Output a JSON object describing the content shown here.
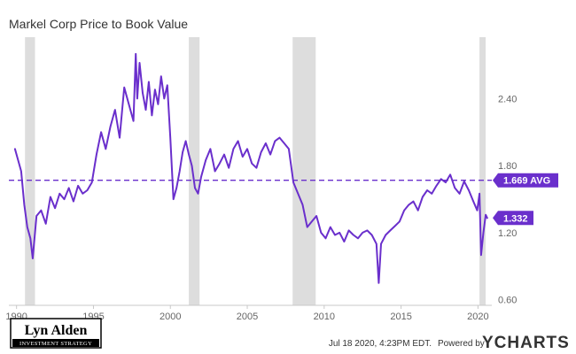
{
  "chart_data": {
    "type": "line",
    "title": "Markel Corp Price to Book Value",
    "xlabel": "",
    "ylabel": "",
    "xlim": [
      1989.5,
      2020.9
    ],
    "ylim": [
      0.55,
      2.95
    ],
    "x_ticks": [
      {
        "label": "1990",
        "value": 1990
      },
      {
        "label": "1995",
        "value": 1995
      },
      {
        "label": "2000",
        "value": 2000
      },
      {
        "label": "2005",
        "value": 2005
      },
      {
        "label": "2010",
        "value": 2010
      },
      {
        "label": "2015",
        "value": 2015
      },
      {
        "label": "2020",
        "value": 2020
      }
    ],
    "y_ticks": [
      {
        "label": "2.40",
        "value": 2.4
      },
      {
        "label": "1.80",
        "value": 1.8
      },
      {
        "label": "1.20",
        "value": 1.2
      },
      {
        "label": "0.60",
        "value": 0.6
      }
    ],
    "recessions": [
      {
        "start": 1990.55,
        "end": 1991.2
      },
      {
        "start": 2001.2,
        "end": 2001.9
      },
      {
        "start": 2007.95,
        "end": 2009.45
      },
      {
        "start": 2020.1,
        "end": 2020.5
      }
    ],
    "average": {
      "value": 1.669,
      "label": "1.669 AVG"
    },
    "current": {
      "value": 1.332,
      "label": "1.332"
    },
    "series": [
      {
        "x": [
          1989.9,
          1990.1,
          1990.3,
          1990.5,
          1990.7,
          1990.9,
          1991.05,
          1991.3,
          1991.6,
          1991.9,
          1992.2,
          1992.5,
          1992.8,
          1993.1,
          1993.4,
          1993.7,
          1994.0,
          1994.3,
          1994.6,
          1994.9,
          1995.2,
          1995.5,
          1995.8,
          1996.1,
          1996.4,
          1996.7,
          1997.0,
          1997.3,
          1997.6,
          1997.75,
          1997.85,
          1998.0,
          1998.2,
          1998.4,
          1998.6,
          1998.8,
          1999.0,
          1999.2,
          1999.4,
          1999.6,
          1999.8,
          2000.0,
          2000.2,
          2000.4,
          2000.6,
          2000.8,
          2001.0,
          2001.2,
          2001.4,
          2001.6,
          2001.8,
          2002.0,
          2002.3,
          2002.6,
          2002.9,
          2003.2,
          2003.5,
          2003.8,
          2004.1,
          2004.4,
          2004.7,
          2005.0,
          2005.3,
          2005.6,
          2005.9,
          2006.2,
          2006.5,
          2006.8,
          2007.1,
          2007.4,
          2007.7,
          2008.0,
          2008.3,
          2008.6,
          2008.9,
          2009.2,
          2009.5,
          2009.8,
          2010.1,
          2010.4,
          2010.7,
          2011.0,
          2011.3,
          2011.6,
          2011.9,
          2012.2,
          2012.5,
          2012.8,
          2013.1,
          2013.4,
          2013.55,
          2013.7,
          2014.0,
          2014.3,
          2014.6,
          2014.9,
          2015.2,
          2015.5,
          2015.8,
          2016.1,
          2016.4,
          2016.7,
          2017.0,
          2017.3,
          2017.6,
          2017.9,
          2018.2,
          2018.5,
          2018.8,
          2019.1,
          2019.4,
          2019.7,
          2019.95,
          2020.1,
          2020.2,
          2020.35,
          2020.5,
          2020.6
        ],
        "values": [
          1.95,
          1.85,
          1.75,
          1.45,
          1.25,
          1.15,
          0.97,
          1.35,
          1.4,
          1.28,
          1.52,
          1.42,
          1.55,
          1.5,
          1.6,
          1.48,
          1.62,
          1.55,
          1.58,
          1.65,
          1.9,
          2.1,
          1.95,
          2.15,
          2.3,
          2.05,
          2.5,
          2.35,
          2.2,
          2.8,
          2.4,
          2.72,
          2.45,
          2.3,
          2.55,
          2.25,
          2.48,
          2.35,
          2.6,
          2.4,
          2.52,
          2.05,
          1.5,
          1.6,
          1.75,
          1.92,
          2.02,
          1.9,
          1.8,
          1.6,
          1.55,
          1.7,
          1.85,
          1.95,
          1.75,
          1.82,
          1.9,
          1.78,
          1.95,
          2.02,
          1.88,
          1.95,
          1.82,
          1.78,
          1.92,
          2.0,
          1.9,
          2.02,
          2.05,
          2.0,
          1.95,
          1.65,
          1.55,
          1.45,
          1.25,
          1.3,
          1.35,
          1.2,
          1.15,
          1.25,
          1.18,
          1.2,
          1.12,
          1.22,
          1.18,
          1.15,
          1.2,
          1.22,
          1.18,
          1.1,
          0.75,
          1.1,
          1.18,
          1.22,
          1.26,
          1.3,
          1.4,
          1.45,
          1.48,
          1.4,
          1.52,
          1.58,
          1.55,
          1.62,
          1.68,
          1.65,
          1.72,
          1.6,
          1.55,
          1.66,
          1.58,
          1.48,
          1.4,
          1.55,
          1.0,
          1.2,
          1.36,
          1.332
        ]
      }
    ]
  },
  "logo": {
    "name": "Lyn Alden",
    "tagline": "INVESTMENT STRATEGY"
  },
  "footer": {
    "timestamp": "Jul 18 2020, 4:23PM EDT.",
    "powered_by": "Powered by",
    "brand": "YCHARTS"
  },
  "colors": {
    "line": "#6a2fcc",
    "recession": "#dddddd",
    "axis": "#c8c8c8",
    "text": "#333333",
    "tick": "#666666"
  }
}
